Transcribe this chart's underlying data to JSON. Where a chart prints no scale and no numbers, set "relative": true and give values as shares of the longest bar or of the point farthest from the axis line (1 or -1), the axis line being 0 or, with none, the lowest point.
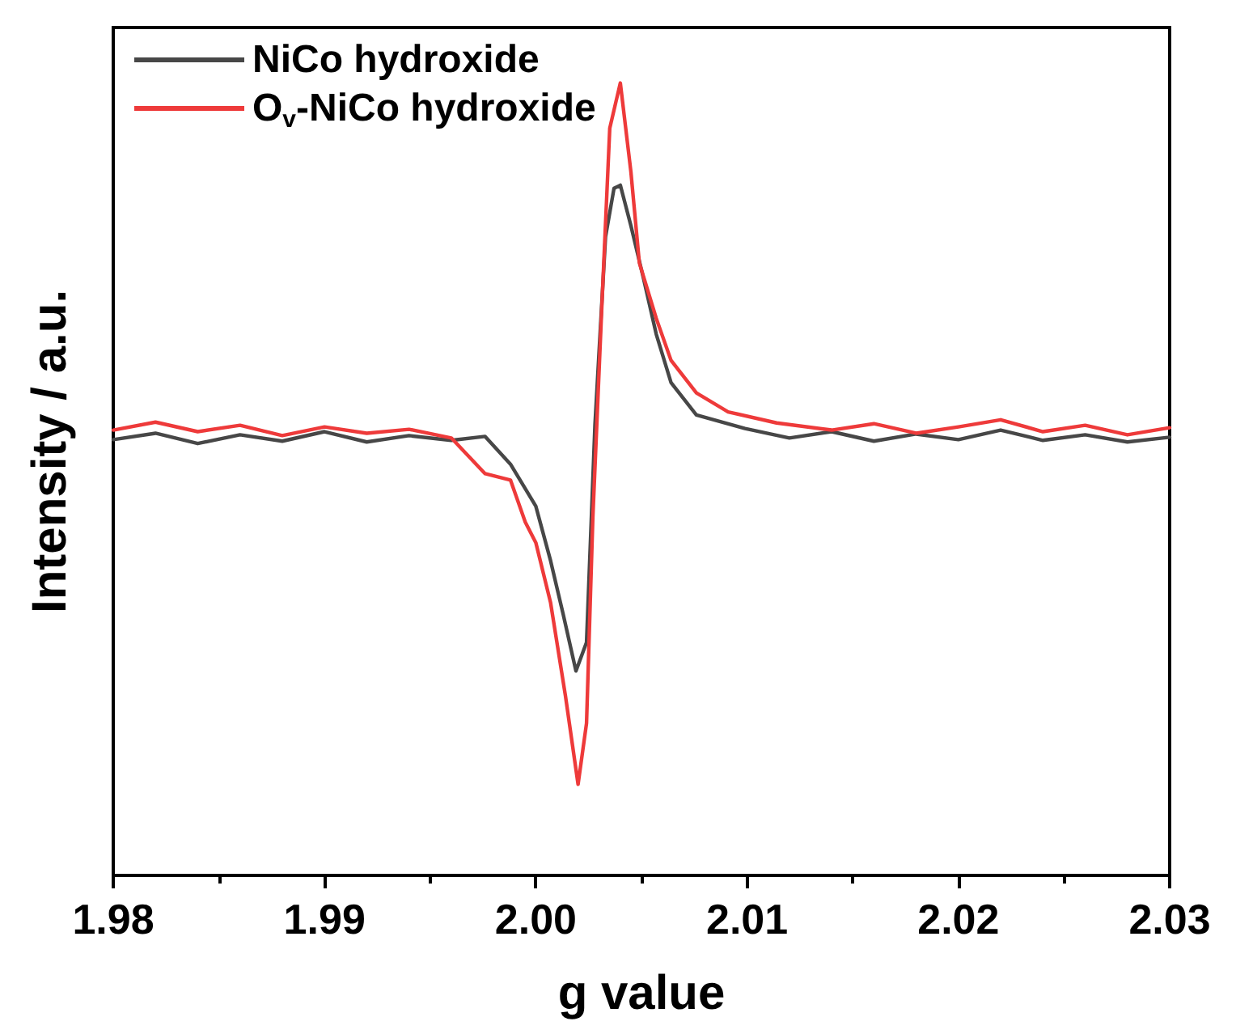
{
  "chart_data": {
    "type": "line",
    "xlabel": "g value",
    "ylabel": "Intensity / a.u.",
    "relative": true,
    "grid": false,
    "legend": "top left",
    "marker": "none",
    "line_style": "solid",
    "xlim": [
      1.98,
      2.03
    ],
    "xticks": [
      1.98,
      1.99,
      {
        "value": 2.0,
        "label": "2.00"
      },
      2.01,
      2.02,
      2.03
    ],
    "series": [
      {
        "name": "NiCo hydroxide",
        "color": "#474747",
        "x": [
          1.98,
          1.982,
          1.984,
          1.986,
          1.988,
          1.99,
          1.992,
          1.994,
          1.996,
          1.9976,
          1.9988,
          2.0,
          2.0007,
          2.0013,
          2.0019,
          2.0024,
          2.0028,
          2.0033,
          2.0037,
          2.004,
          2.0045,
          2.0051,
          2.0057,
          2.0064,
          2.0076,
          2.0099,
          2.012,
          2.014,
          2.016,
          2.018,
          2.02,
          2.022,
          2.024,
          2.026,
          2.028,
          2.03
        ],
        "values": [
          0.55,
          0.558,
          0.545,
          0.556,
          0.548,
          0.56,
          0.547,
          0.555,
          0.549,
          0.554,
          0.519,
          0.466,
          0.397,
          0.329,
          0.258,
          0.294,
          0.569,
          0.806,
          0.867,
          0.871,
          0.82,
          0.753,
          0.683,
          0.622,
          0.581,
          0.564,
          0.552,
          0.56,
          0.548,
          0.557,
          0.55,
          0.562,
          0.549,
          0.556,
          0.547,
          0.553
        ]
      },
      {
        "name": "O$_{v}$-NiCo hydroxide",
        "color": "#ee3a3a",
        "x": [
          1.98,
          1.982,
          1.984,
          1.986,
          1.988,
          1.99,
          1.992,
          1.994,
          1.996,
          1.9976,
          1.9988,
          1.9995,
          2.0,
          2.0007,
          2.0014,
          2.002,
          2.0024,
          2.0027,
          2.0031,
          2.0035,
          2.004,
          2.0045,
          2.0049,
          2.0057,
          2.0064,
          2.0076,
          2.0091,
          2.0114,
          2.014,
          2.016,
          2.018,
          2.02,
          2.022,
          2.024,
          2.026,
          2.028,
          2.03
        ],
        "values": [
          0.562,
          0.572,
          0.56,
          0.568,
          0.555,
          0.566,
          0.558,
          0.563,
          0.552,
          0.507,
          0.499,
          0.446,
          0.42,
          0.344,
          0.227,
          0.115,
          0.192,
          0.452,
          0.703,
          0.943,
          1.0,
          0.888,
          0.773,
          0.703,
          0.65,
          0.609,
          0.585,
          0.571,
          0.562,
          0.57,
          0.558,
          0.566,
          0.575,
          0.56,
          0.568,
          0.556,
          0.565
        ]
      }
    ]
  }
}
